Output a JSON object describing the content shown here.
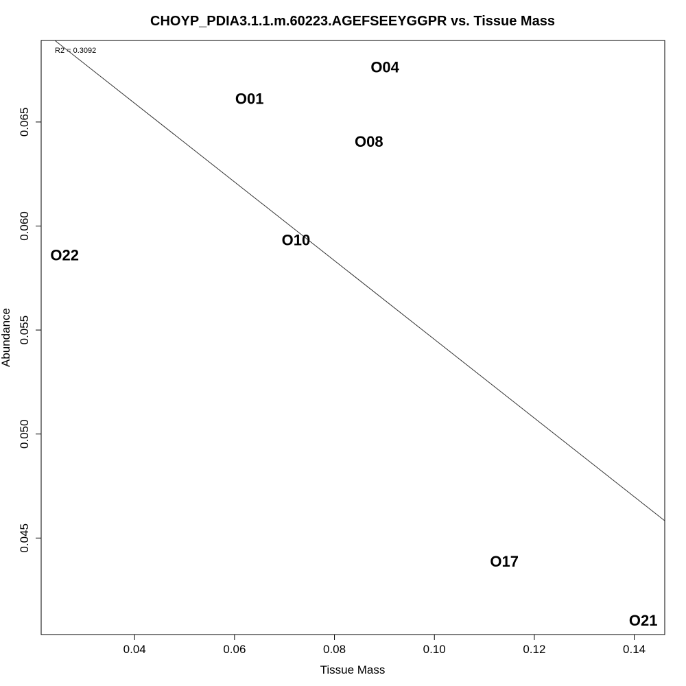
{
  "chart_data": {
    "type": "scatter",
    "title": "CHOYP_PDIA3.1.1.m.60223.AGEFSEEYGGPR vs. Tissue Mass",
    "xlabel": "Tissue Mass",
    "ylabel": "Abundance",
    "annotation": "R2 = 0.3092",
    "xlim": [
      0.0213,
      0.1461
    ],
    "ylim": [
      0.04036,
      0.06892
    ],
    "x_ticks": [
      0.04,
      0.06,
      0.08,
      0.1,
      0.12,
      0.14
    ],
    "x_tick_labels": [
      "0.04",
      "0.06",
      "0.08",
      "0.10",
      "0.12",
      "0.14"
    ],
    "y_ticks": [
      0.045,
      0.05,
      0.055,
      0.06,
      0.065
    ],
    "y_tick_labels": [
      "0.045",
      "0.050",
      "0.055",
      "0.060",
      "0.065"
    ],
    "points": [
      {
        "label": "O01",
        "x": 0.063,
        "y": 0.06612
      },
      {
        "label": "O04",
        "x": 0.0901,
        "y": 0.06763
      },
      {
        "label": "O08",
        "x": 0.0869,
        "y": 0.06405
      },
      {
        "label": "O10",
        "x": 0.0723,
        "y": 0.05932
      },
      {
        "label": "O22",
        "x": 0.026,
        "y": 0.0586
      },
      {
        "label": "O17",
        "x": 0.114,
        "y": 0.04388
      },
      {
        "label": "O21",
        "x": 0.1418,
        "y": 0.04103
      }
    ],
    "fit_line": {
      "x0": 0.0213,
      "y0": 0.06944,
      "x1": 0.1461,
      "y1": 0.04583
    },
    "grid": false,
    "legend": "none"
  }
}
